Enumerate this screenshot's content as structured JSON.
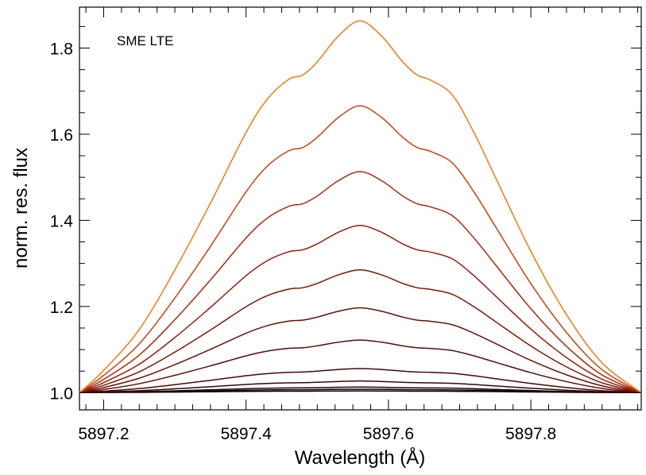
{
  "chart_data": {
    "type": "line",
    "title": "",
    "annotation": "SME LTE",
    "xlabel": "Wavelength (Å)",
    "ylabel": "norm. res. flux",
    "xlim": [
      5897.166,
      5897.955
    ],
    "ylim": [
      0.96,
      1.895
    ],
    "x_ticks": [
      5897.2,
      5897.4,
      5897.6,
      5897.8
    ],
    "x_tick_labels": [
      "5897.2",
      "5897.4",
      "5897.6",
      "5897.8"
    ],
    "y_ticks": [
      1.0,
      1.2,
      1.4,
      1.6,
      1.8
    ],
    "y_tick_labels": [
      "1.0",
      "1.2",
      "1.4",
      "1.6",
      "1.8"
    ],
    "grid": false,
    "legend": "none",
    "profile_shape": {
      "center": 5897.56,
      "x": [
        5897.166,
        5897.2,
        5897.25,
        5897.3,
        5897.35,
        5897.4,
        5897.43,
        5897.46,
        5897.48,
        5897.5,
        5897.53,
        5897.56,
        5897.59,
        5897.62,
        5897.64,
        5897.66,
        5897.69,
        5897.72,
        5897.75,
        5897.8,
        5897.85,
        5897.9,
        5897.955
      ],
      "relative_excess": [
        0.0,
        0.06,
        0.17,
        0.33,
        0.51,
        0.7,
        0.79,
        0.843,
        0.855,
        0.89,
        0.96,
        1.0,
        0.96,
        0.89,
        0.855,
        0.84,
        0.8,
        0.7,
        0.58,
        0.38,
        0.21,
        0.08,
        0.0
      ]
    },
    "series": [
      {
        "peak": 1.004,
        "color": "#000000"
      },
      {
        "peak": 1.008,
        "color": "#150202"
      },
      {
        "peak": 1.013,
        "color": "#250505"
      },
      {
        "peak": 1.027,
        "color": "#340808"
      },
      {
        "peak": 1.056,
        "color": "#440a08"
      },
      {
        "peak": 1.122,
        "color": "#560d08"
      },
      {
        "peak": 1.197,
        "color": "#6a1008"
      },
      {
        "peak": 1.285,
        "color": "#801508"
      },
      {
        "peak": 1.388,
        "color": "#951b0a"
      },
      {
        "peak": 1.513,
        "color": "#ac2a0c"
      },
      {
        "peak": 1.666,
        "color": "#c8420e"
      },
      {
        "peak": 1.863,
        "color": "#f07c14"
      }
    ]
  }
}
